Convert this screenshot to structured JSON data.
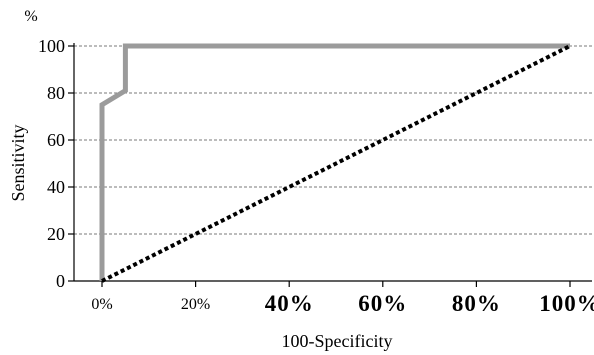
{
  "chart_data": {
    "type": "line",
    "xlabel": "100-Specificity",
    "ylabel": "Sensitivity",
    "y_unit": "%",
    "xlim": [
      0,
      100
    ],
    "ylim": [
      0,
      100
    ],
    "x_ticks": [
      {
        "value": 0,
        "label": "0%",
        "style": "small"
      },
      {
        "value": 20,
        "label": "20%",
        "style": "small"
      },
      {
        "value": 40,
        "label": "40%",
        "style": "large"
      },
      {
        "value": 60,
        "label": "60%",
        "style": "large"
      },
      {
        "value": 80,
        "label": "80%",
        "style": "large"
      },
      {
        "value": 100,
        "label": "100%",
        "style": "large"
      }
    ],
    "y_ticks": [
      {
        "value": 0,
        "label": "0"
      },
      {
        "value": 20,
        "label": "20"
      },
      {
        "value": 40,
        "label": "40"
      },
      {
        "value": 60,
        "label": "60"
      },
      {
        "value": 80,
        "label": "80"
      },
      {
        "value": 100,
        "label": "100"
      }
    ],
    "grid": "horizontal dashed",
    "series": [
      {
        "role": "roc-curve",
        "color": "#9b9b9b",
        "line_style": "solid",
        "x": [
          0,
          0,
          5,
          5,
          5,
          100
        ],
        "y": [
          0,
          75,
          81,
          87,
          100,
          100
        ]
      },
      {
        "role": "reference-diagonal",
        "color": "#000000",
        "line_style": "dotted",
        "x": [
          0,
          100
        ],
        "y": [
          0,
          100
        ]
      }
    ]
  }
}
